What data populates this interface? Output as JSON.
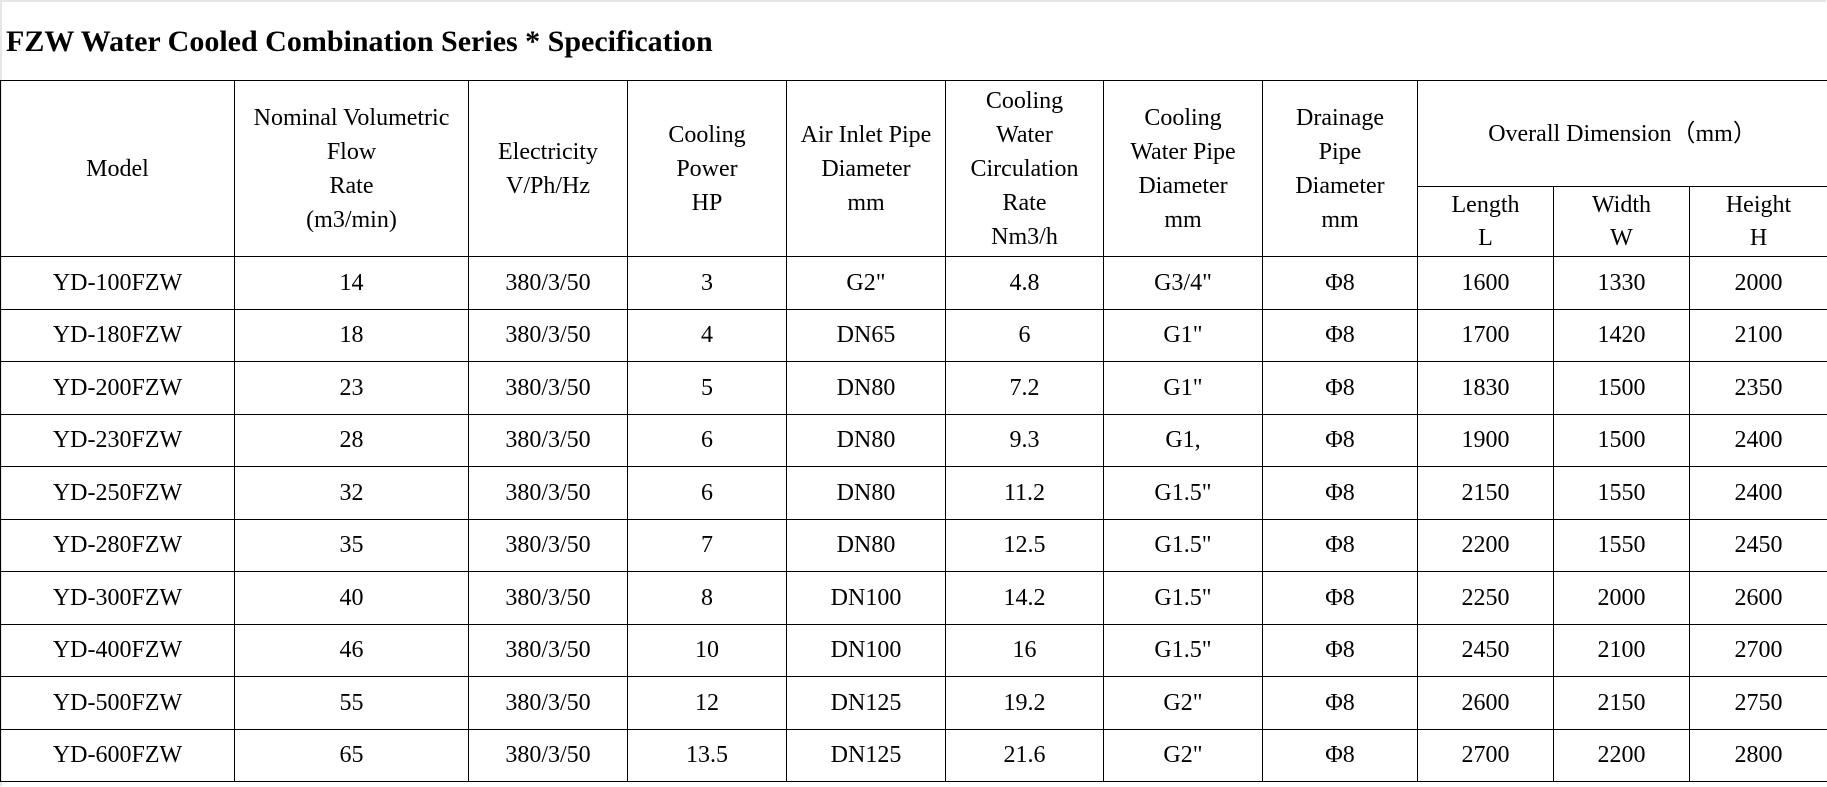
{
  "title": "FZW Water Cooled Combination Series * Specification",
  "table": {
    "headers": {
      "model": "Model",
      "flow": "Nominal Volumetric\nFlow\nRate\n(m3/min)",
      "electricity": "Electricity\nV/Ph/Hz",
      "power": "Cooling\nPower\nHP",
      "air_inlet": "Air Inlet Pipe\nDiameter\nmm",
      "water_rate": "Cooling\nWater\nCirculation\nRate\nNm3/h",
      "water_pipe": "Cooling\nWater Pipe\nDiameter\nmm",
      "drainage": "Drainage\nPipe\nDiameter\nmm",
      "dimension": "Overall Dimension（mm）",
      "length": "Length\nL",
      "width": "Width\nW",
      "height": "Height\nH"
    },
    "rows": [
      {
        "model": "YD-100FZW",
        "flow": "14",
        "electricity": "380/3/50",
        "power": "3",
        "air_inlet": "G2\"",
        "water_rate": "4.8",
        "water_pipe": "G3/4\"",
        "drainage": "Φ8",
        "length": "1600",
        "width": "1330",
        "height": "2000"
      },
      {
        "model": "YD-180FZW",
        "flow": "18",
        "electricity": "380/3/50",
        "power": "4",
        "air_inlet": "DN65",
        "water_rate": "6",
        "water_pipe": "G1\"",
        "drainage": "Φ8",
        "length": "1700",
        "width": "1420",
        "height": "2100"
      },
      {
        "model": "YD-200FZW",
        "flow": "23",
        "electricity": "380/3/50",
        "power": "5",
        "air_inlet": "DN80",
        "water_rate": "7.2",
        "water_pipe": "G1\"",
        "drainage": "Φ8",
        "length": "1830",
        "width": "1500",
        "height": "2350"
      },
      {
        "model": "YD-230FZW",
        "flow": "28",
        "electricity": "380/3/50",
        "power": "6",
        "air_inlet": "DN80",
        "water_rate": "9.3",
        "water_pipe": "G1,",
        "drainage": "Φ8",
        "length": "1900",
        "width": "1500",
        "height": "2400"
      },
      {
        "model": "YD-250FZW",
        "flow": "32",
        "electricity": "380/3/50",
        "power": "6",
        "air_inlet": "DN80",
        "water_rate": "11.2",
        "water_pipe": "G1.5\"",
        "drainage": "Φ8",
        "length": "2150",
        "width": "1550",
        "height": "2400"
      },
      {
        "model": "YD-280FZW",
        "flow": "35",
        "electricity": "380/3/50",
        "power": "7",
        "air_inlet": "DN80",
        "water_rate": "12.5",
        "water_pipe": "G1.5\"",
        "drainage": "Φ8",
        "length": "2200",
        "width": "1550",
        "height": "2450"
      },
      {
        "model": "YD-300FZW",
        "flow": "40",
        "electricity": "380/3/50",
        "power": "8",
        "air_inlet": "DN100",
        "water_rate": "14.2",
        "water_pipe": "G1.5\"",
        "drainage": "Φ8",
        "length": "2250",
        "width": "2000",
        "height": "2600"
      },
      {
        "model": "YD-400FZW",
        "flow": "46",
        "electricity": "380/3/50",
        "power": "10",
        "air_inlet": "DN100",
        "water_rate": "16",
        "water_pipe": "G1.5\"",
        "drainage": "Φ8",
        "length": "2450",
        "width": "2100",
        "height": "2700"
      },
      {
        "model": "YD-500FZW",
        "flow": "55",
        "electricity": "380/3/50",
        "power": "12",
        "air_inlet": "DN125",
        "water_rate": "19.2",
        "water_pipe": "G2\"",
        "drainage": "Φ8",
        "length": "2600",
        "width": "2150",
        "height": "2750"
      },
      {
        "model": "YD-600FZW",
        "flow": "65",
        "electricity": "380/3/50",
        "power": "13.5",
        "air_inlet": "DN125",
        "water_rate": "21.6",
        "water_pipe": "G2\"",
        "drainage": "Φ8",
        "length": "2700",
        "width": "2200",
        "height": "2800"
      }
    ]
  }
}
